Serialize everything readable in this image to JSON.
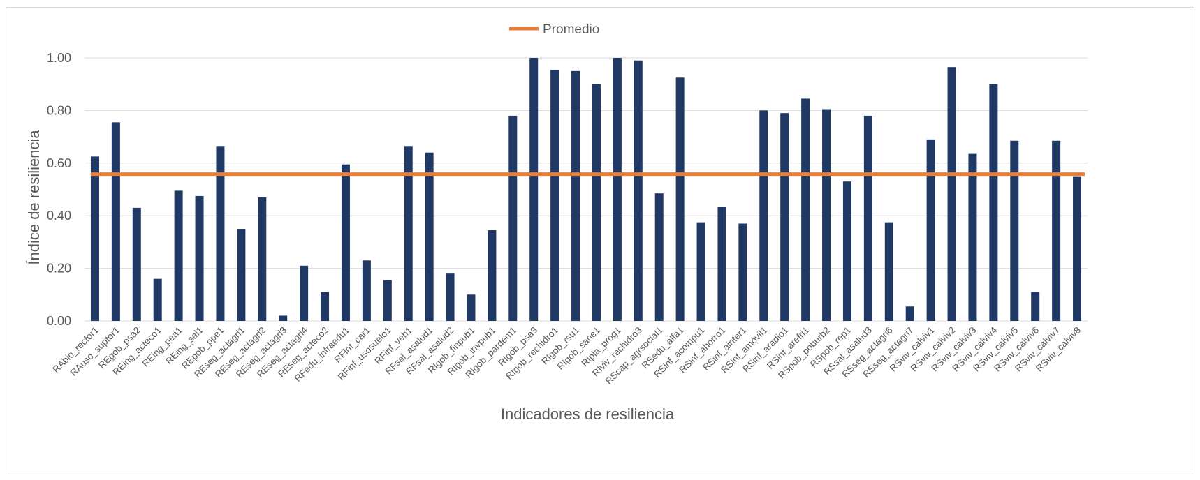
{
  "chart_data": {
    "type": "bar",
    "title": "",
    "xlabel": "Indicadores de resiliencia",
    "ylabel": "Índice de resiliencia",
    "ylim": [
      0,
      1
    ],
    "yticks": [
      "0.00",
      "0.20",
      "0.40",
      "0.60",
      "0.80",
      "1.00"
    ],
    "grid": true,
    "legend_position": "top-center",
    "categories": [
      "RAbio_recfor1",
      "RAuso_supfor1",
      "REgob_psa2",
      "REing_acteco1",
      "REing_pea1",
      "REing_sal1",
      "REpob_ppe1",
      "REseg_actagri1",
      "REseg_actagri2",
      "REseg_actagri3",
      "REseg_actagri4",
      "REseg_acteco2",
      "RFedu_infraedu1",
      "RFinf_car1",
      "RFinf_usosuelo1",
      "RFinf_veh1",
      "RFsal_asalud1",
      "RFsal_asalud2",
      "RIgob_finpub1",
      "RIgob_invpub1",
      "RIgob_pardem1",
      "RIgob_psa3",
      "RIgob_rechidro1",
      "RIgob_rsu1",
      "RIgob_sane1",
      "RIpla_prog1",
      "RIviv_rechidro3",
      "RScap_agrsocial1",
      "RSedu_alfa1",
      "RSinf_acompu1",
      "RSinf_ahorro1",
      "RSinf_ainter1",
      "RSinf_amóvil1",
      "RSinf_aradio1",
      "RSinf_arefri1",
      "RSpob_poburb2",
      "RSpob_rep1",
      "RSsal_asalud3",
      "RSseg_actagri6",
      "RSseg_actagri7",
      "RSviv_calviv1",
      "RSviv_calviv2",
      "RSviv_calviv3",
      "RSviv_calviv4",
      "RSviv_calviv5",
      "RSviv_calviv6",
      "RSviv_calviv7",
      "RSviv_calviv8"
    ],
    "series": [
      {
        "color": "#1f3864",
        "values": [
          0.625,
          0.755,
          0.43,
          0.16,
          0.495,
          0.475,
          0.665,
          0.35,
          0.47,
          0.02,
          0.21,
          0.11,
          0.595,
          0.23,
          0.155,
          0.665,
          0.64,
          0.18,
          0.1,
          0.345,
          0.78,
          1.0,
          0.955,
          0.95,
          0.9,
          1.0,
          0.99,
          0.485,
          0.925,
          0.375,
          0.435,
          0.37,
          0.8,
          0.79,
          0.845,
          0.805,
          0.53,
          0.78,
          0.375,
          0.055,
          0.69,
          0.965,
          0.635,
          0.9,
          0.685,
          0.11,
          0.685,
          0.55
        ]
      },
      {
        "name": "Promedio",
        "type": "line",
        "color": "#ed7d31",
        "value": 0.558
      }
    ]
  }
}
